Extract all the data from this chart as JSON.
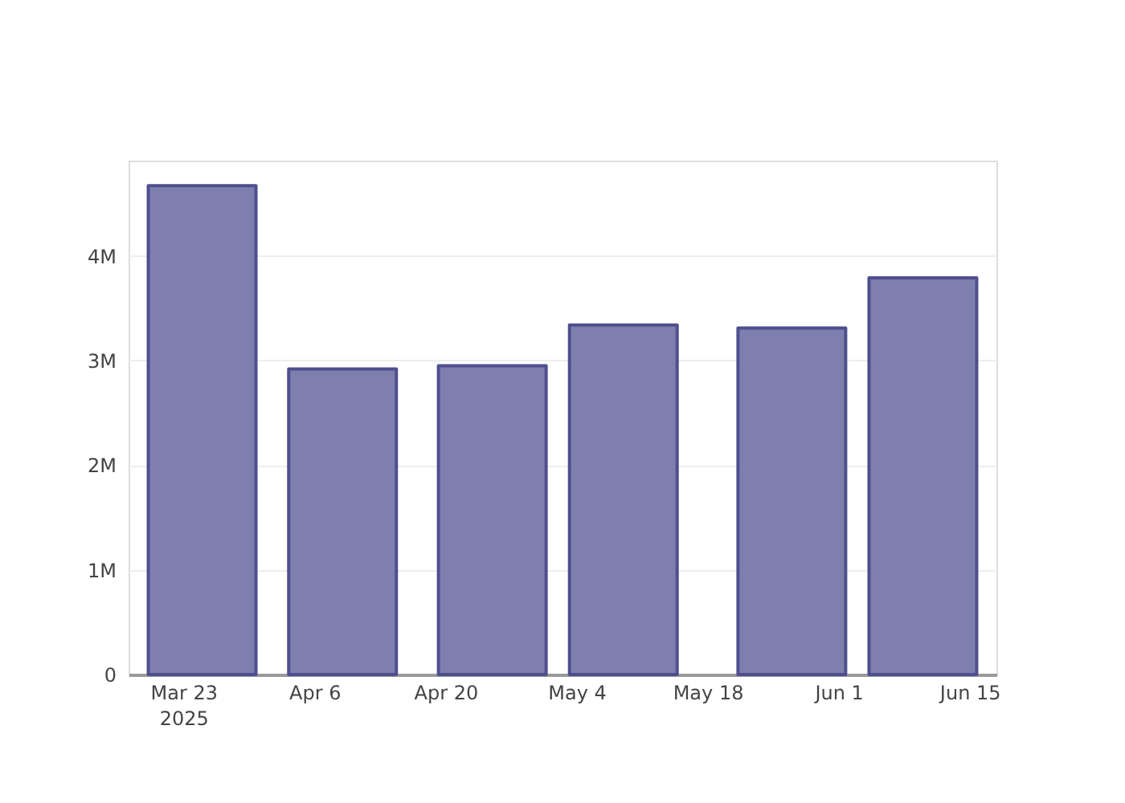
{
  "chart_data": {
    "type": "bar",
    "x": [
      "2025-03-25",
      "2025-04-09",
      "2025-04-25",
      "2025-05-09",
      "2025-05-27",
      "2025-06-10"
    ],
    "series": [
      {
        "color": "#7f7faf",
        "values": [
          4670000,
          2920000,
          2950000,
          3340000,
          3310000,
          3790000
        ]
      }
    ],
    "xlim": [
      "2025-03-18",
      "2025-06-17"
    ],
    "xticks": [
      {
        "value": "2025-03-23",
        "label": "Mar 23\n2025"
      },
      {
        "value": "2025-04-06",
        "label": "Apr 6"
      },
      {
        "value": "2025-04-20",
        "label": "Apr 20"
      },
      {
        "value": "2025-05-04",
        "label": "May 4"
      },
      {
        "value": "2025-05-18",
        "label": "May 18"
      },
      {
        "value": "2025-06-01",
        "label": "Jun 1"
      },
      {
        "value": "2025-06-15",
        "label": "Jun 15"
      }
    ],
    "ylim": [
      0,
      4910000
    ],
    "yticks": [
      0,
      {
        "value": 1000000,
        "label": "1M"
      },
      {
        "value": 2000000,
        "label": "2M"
      },
      {
        "value": 3000000,
        "label": "3M"
      },
      {
        "value": 4000000,
        "label": "4M"
      }
    ],
    "grid": "y"
  }
}
